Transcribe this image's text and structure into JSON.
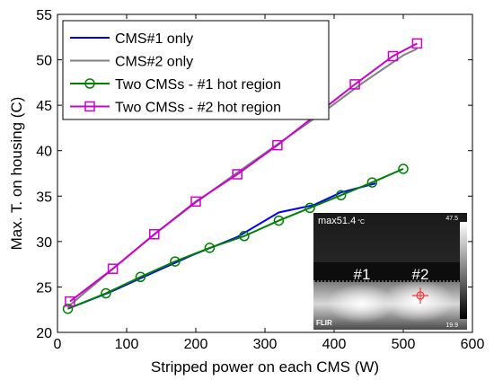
{
  "chart_data": {
    "type": "line",
    "xlabel": "Stripped power on each CMS (W)",
    "ylabel": "Max. T. on housing (C)",
    "xlim": [
      0,
      600
    ],
    "ylim": [
      20,
      55
    ],
    "xticks": [
      0,
      100,
      200,
      300,
      400,
      500,
      600
    ],
    "yticks": [
      20,
      25,
      30,
      35,
      40,
      45,
      50,
      55
    ],
    "grid": false,
    "legend_position": "top-left",
    "series": [
      {
        "name": "CMS#1 only",
        "color": "#0000ff",
        "marker": "none",
        "x": [
          15,
          75,
          130,
          195,
          260,
          320,
          370,
          410,
          460
        ],
        "y": [
          22.6,
          24.4,
          26.3,
          28.5,
          30.5,
          33.2,
          34.0,
          35.4,
          36.4
        ]
      },
      {
        "name": "CMS#2 only",
        "color": "#808080",
        "marker": "none",
        "x": [
          15,
          80,
          140,
          200,
          260,
          320,
          380,
          440,
          500,
          520
        ],
        "y": [
          22.8,
          27.0,
          30.8,
          34.3,
          37.6,
          40.8,
          44.0,
          47.4,
          50.5,
          51.2
        ]
      },
      {
        "name": "Two CMSs - #1 hot region",
        "color": "#008000",
        "marker": "circle",
        "x": [
          15,
          70,
          120,
          170,
          220,
          270,
          320,
          365,
          410,
          455,
          500
        ],
        "y": [
          22.6,
          24.3,
          26.1,
          27.8,
          29.3,
          30.6,
          32.3,
          33.7,
          35.1,
          36.5,
          38.0
        ]
      },
      {
        "name": "Two CMSs - #2 hot region",
        "color": "#cc00cc",
        "marker": "square",
        "x": [
          18,
          80,
          140,
          200,
          260,
          318,
          430,
          485,
          520
        ],
        "y": [
          23.4,
          27.0,
          30.8,
          34.4,
          37.4,
          40.6,
          47.3,
          50.4,
          51.8
        ]
      }
    ]
  },
  "inset": {
    "max_readout": "max51.4",
    "unit": "°C",
    "scale_top": "47.5",
    "scale_bottom": "19.9",
    "label_1": "#1",
    "label_2": "#2",
    "brand": "FLIR"
  }
}
